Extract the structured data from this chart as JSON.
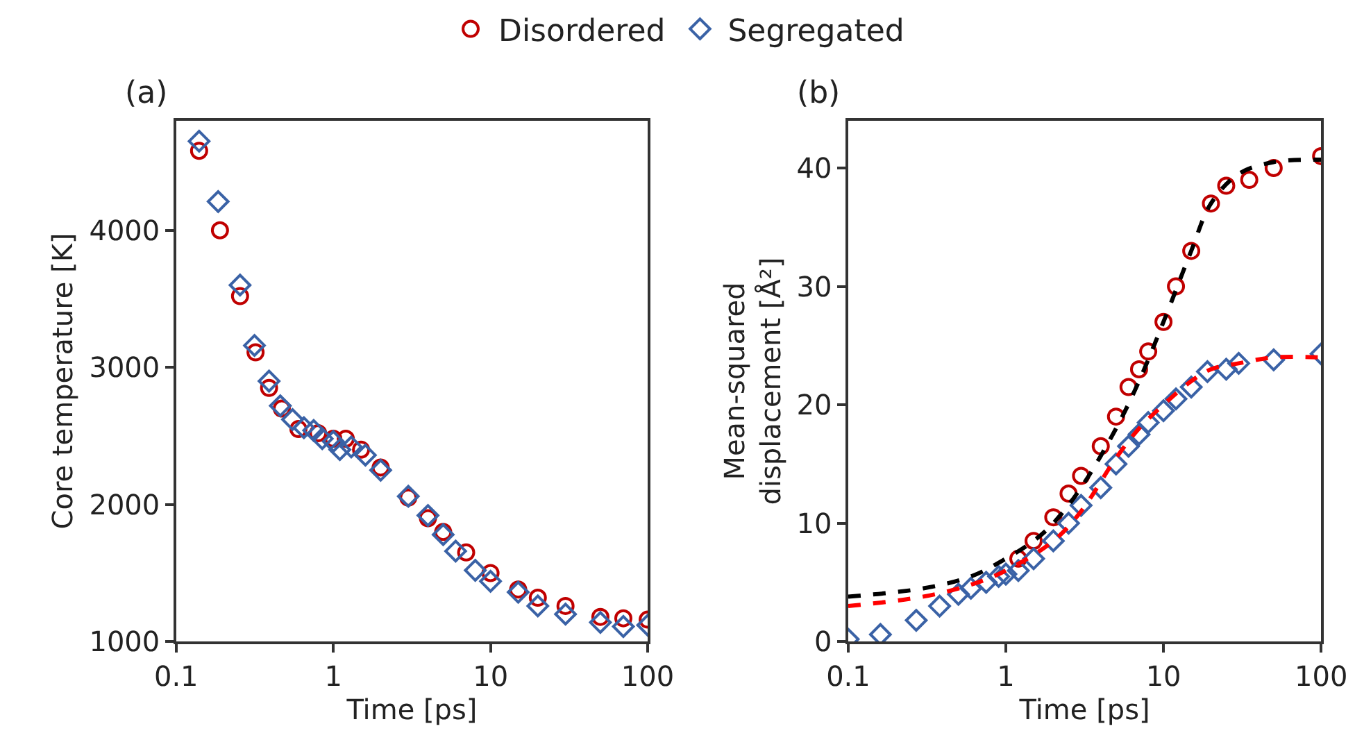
{
  "chart_data": [
    {
      "type": "scatter",
      "title": "(a)",
      "xlabel": "Time [ps]",
      "ylabel": "Core temperature [K]",
      "log": "x",
      "legend": "top",
      "xlim": [
        0.1,
        100
      ],
      "xticks": [
        0.1,
        1,
        10,
        100
      ],
      "ylim": [
        1000,
        4800
      ],
      "yticks": [
        1000,
        2000,
        3000,
        4000
      ],
      "series": [
        {
          "name": "Disordered",
          "color": "#c00000",
          "marker": "circle",
          "x": [
            0.14,
            0.19,
            0.255,
            0.32,
            0.39,
            0.47,
            0.6,
            0.8,
            1.0,
            1.2,
            1.5,
            2,
            3,
            4,
            5,
            7,
            10,
            15,
            20,
            30,
            50,
            70,
            100
          ],
          "values": [
            4580,
            4000,
            3520,
            3110,
            2850,
            2700,
            2550,
            2520,
            2480,
            2480,
            2400,
            2270,
            2050,
            1900,
            1800,
            1650,
            1500,
            1380,
            1320,
            1260,
            1180,
            1170,
            1160
          ]
        },
        {
          "name": "Segregated",
          "color": "#3a62a6",
          "marker": "diamond",
          "x": [
            0.14,
            0.185,
            0.255,
            0.315,
            0.39,
            0.46,
            0.55,
            0.65,
            0.75,
            0.85,
            1.0,
            1.1,
            1.3,
            1.6,
            2,
            3,
            4,
            5,
            6,
            8,
            10,
            15,
            20,
            30,
            50,
            70,
            100
          ],
          "values": [
            4650,
            4210,
            3600,
            3160,
            2900,
            2720,
            2620,
            2560,
            2540,
            2480,
            2460,
            2400,
            2420,
            2360,
            2250,
            2060,
            1920,
            1780,
            1660,
            1520,
            1440,
            1360,
            1260,
            1200,
            1140,
            1110,
            1120
          ]
        }
      ]
    },
    {
      "type": "scatter",
      "title": "(b)",
      "xlabel": "Time [ps]",
      "ylabel": "Mean-squared\ndisplacement [Å²]",
      "log": "x",
      "xlim": [
        0.1,
        100
      ],
      "xticks": [
        0.1,
        1,
        10,
        100
      ],
      "ylim": [
        0,
        44
      ],
      "yticks": [
        0,
        10,
        20,
        30,
        40
      ],
      "series": [
        {
          "color": "#c00000",
          "marker": "circle",
          "x": [
            1.2,
            1.5,
            2,
            2.5,
            3,
            4,
            5,
            6,
            7,
            8,
            10,
            12,
            15,
            20,
            25,
            35,
            50,
            100
          ],
          "values": [
            7,
            8.5,
            10.5,
            12.5,
            14,
            16.5,
            19,
            21.5,
            23,
            24.5,
            27,
            30,
            33,
            37,
            38.5,
            39,
            40,
            41
          ]
        },
        {
          "color": "#3a62a6",
          "marker": "diamond",
          "x": [
            0.1,
            0.16,
            0.27,
            0.38,
            0.5,
            0.6,
            0.75,
            0.9,
            1.0,
            1.2,
            1.5,
            2,
            2.5,
            3,
            4,
            5,
            6,
            7,
            8,
            10,
            12,
            15,
            19,
            25,
            30,
            50,
            100
          ],
          "values": [
            0.2,
            0.6,
            1.8,
            3,
            4,
            4.5,
            5,
            5.5,
            5.7,
            6,
            7,
            8.5,
            10,
            11.5,
            13,
            15,
            16.5,
            17.5,
            18.5,
            19.5,
            20.5,
            21.5,
            22.8,
            23,
            23.5,
            23.8,
            24.3
          ]
        },
        {
          "type": "line",
          "color": "#000000",
          "line_style": "dashed",
          "marker": "none",
          "x": [
            0.1,
            0.3,
            0.6,
            1,
            1.5,
            2,
            3,
            5,
            7,
            10,
            15,
            20,
            30,
            50,
            100
          ],
          "values": [
            3.8,
            4.5,
            5.5,
            7,
            8.5,
            10,
            13,
            18,
            22,
            27,
            33,
            37,
            39.5,
            40.5,
            40.7
          ]
        },
        {
          "type": "line",
          "color": "#ff0000",
          "line_style": "dashed",
          "marker": "none",
          "x": [
            0.1,
            0.3,
            0.6,
            1,
            2,
            3,
            5,
            7,
            10,
            15,
            20,
            30,
            50,
            100
          ],
          "values": [
            3.0,
            3.8,
            4.8,
            6.0,
            8.5,
            11,
            15.5,
            18,
            20,
            22,
            23,
            23.5,
            24,
            24
          ]
        }
      ]
    }
  ]
}
